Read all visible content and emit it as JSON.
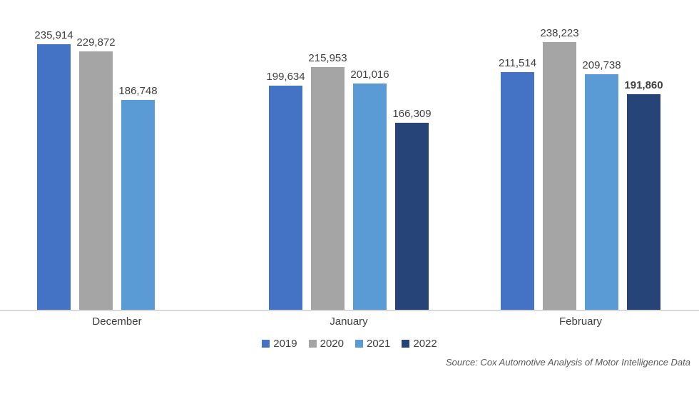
{
  "chart_data": {
    "type": "bar",
    "title": "",
    "categories": [
      "December",
      "January",
      "February"
    ],
    "series": [
      {
        "name": "2019",
        "color": "#4472C4",
        "values": [
          235914,
          199634,
          211514
        ]
      },
      {
        "name": "2020",
        "color": "#A5A5A5",
        "values": [
          229872,
          215953,
          238223
        ]
      },
      {
        "name": "2021",
        "color": "#5B9BD5",
        "values": [
          186748,
          201016,
          209738
        ]
      },
      {
        "name": "2022",
        "color": "#264478",
        "values": [
          null,
          166309,
          191860
        ]
      }
    ],
    "data_labels": true,
    "bold_label": {
      "category": "February",
      "series": "2022"
    },
    "xlabel": "",
    "ylabel": "",
    "ylim": [
      0,
      250000
    ],
    "grid": false,
    "legend_position": "bottom",
    "axis_line_color": "#d9d9d9",
    "source_note": "Source: Cox Automotive Analysis of Motor Intelligence Data"
  }
}
